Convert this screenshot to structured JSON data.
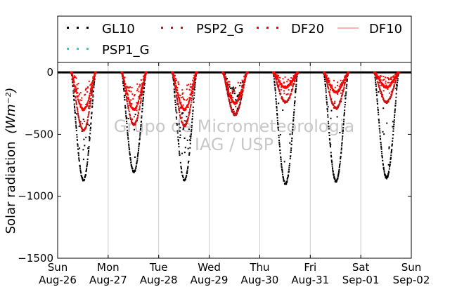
{
  "chart_data": {
    "type": "scatter",
    "title": "",
    "ylabel": "Solar radiation",
    "ylabel_unit": "(Wm⁻²)",
    "xlabel": "",
    "ylim": [
      -1500,
      80
    ],
    "yticks": [
      0,
      -500,
      -1000,
      -1500
    ],
    "xlim": [
      0,
      7
    ],
    "x_unit": "days since Sun Aug-26 00:00",
    "xticks": [
      {
        "day": "Sun",
        "date": "Aug-26"
      },
      {
        "day": "Mon",
        "date": "Aug-27"
      },
      {
        "day": "Tue",
        "date": "Aug-28"
      },
      {
        "day": "Wed",
        "date": "Aug-29"
      },
      {
        "day": "Thu",
        "date": "Aug-30"
      },
      {
        "day": "Fri",
        "date": "Aug-31"
      },
      {
        "day": "Sat",
        "date": "Sep-01"
      },
      {
        "day": "Sun",
        "date": "Sep-02"
      }
    ],
    "grid": "vertical",
    "legend_placement": "top",
    "watermark": [
      "Grupo de Micrometeorologia",
      "IAG / USP"
    ],
    "series": [
      {
        "name": "GL10",
        "style": "dots",
        "color": "#000000",
        "daily_peak": [
          -870,
          -800,
          -870,
          -340,
          -900,
          -880,
          -850
        ]
      },
      {
        "name": "PSP2_G",
        "style": "dots",
        "color": "#cc1111",
        "daily_peak": [
          -470,
          -420,
          -430,
          -340,
          -240,
          -290,
          -240
        ]
      },
      {
        "name": "DF20",
        "style": "dots",
        "color": "#ff0000",
        "daily_peak": [
          -300,
          -300,
          -300,
          -250,
          -120,
          -160,
          -120
        ]
      },
      {
        "name": "DF10",
        "style": "line",
        "color": "#ff6666",
        "daily_peak": [
          -290,
          -290,
          -290,
          -240,
          -110,
          -150,
          -110
        ]
      },
      {
        "name": "PSP1_G",
        "style": "dots",
        "color": "#33cccc",
        "daily_peak": []
      }
    ]
  }
}
